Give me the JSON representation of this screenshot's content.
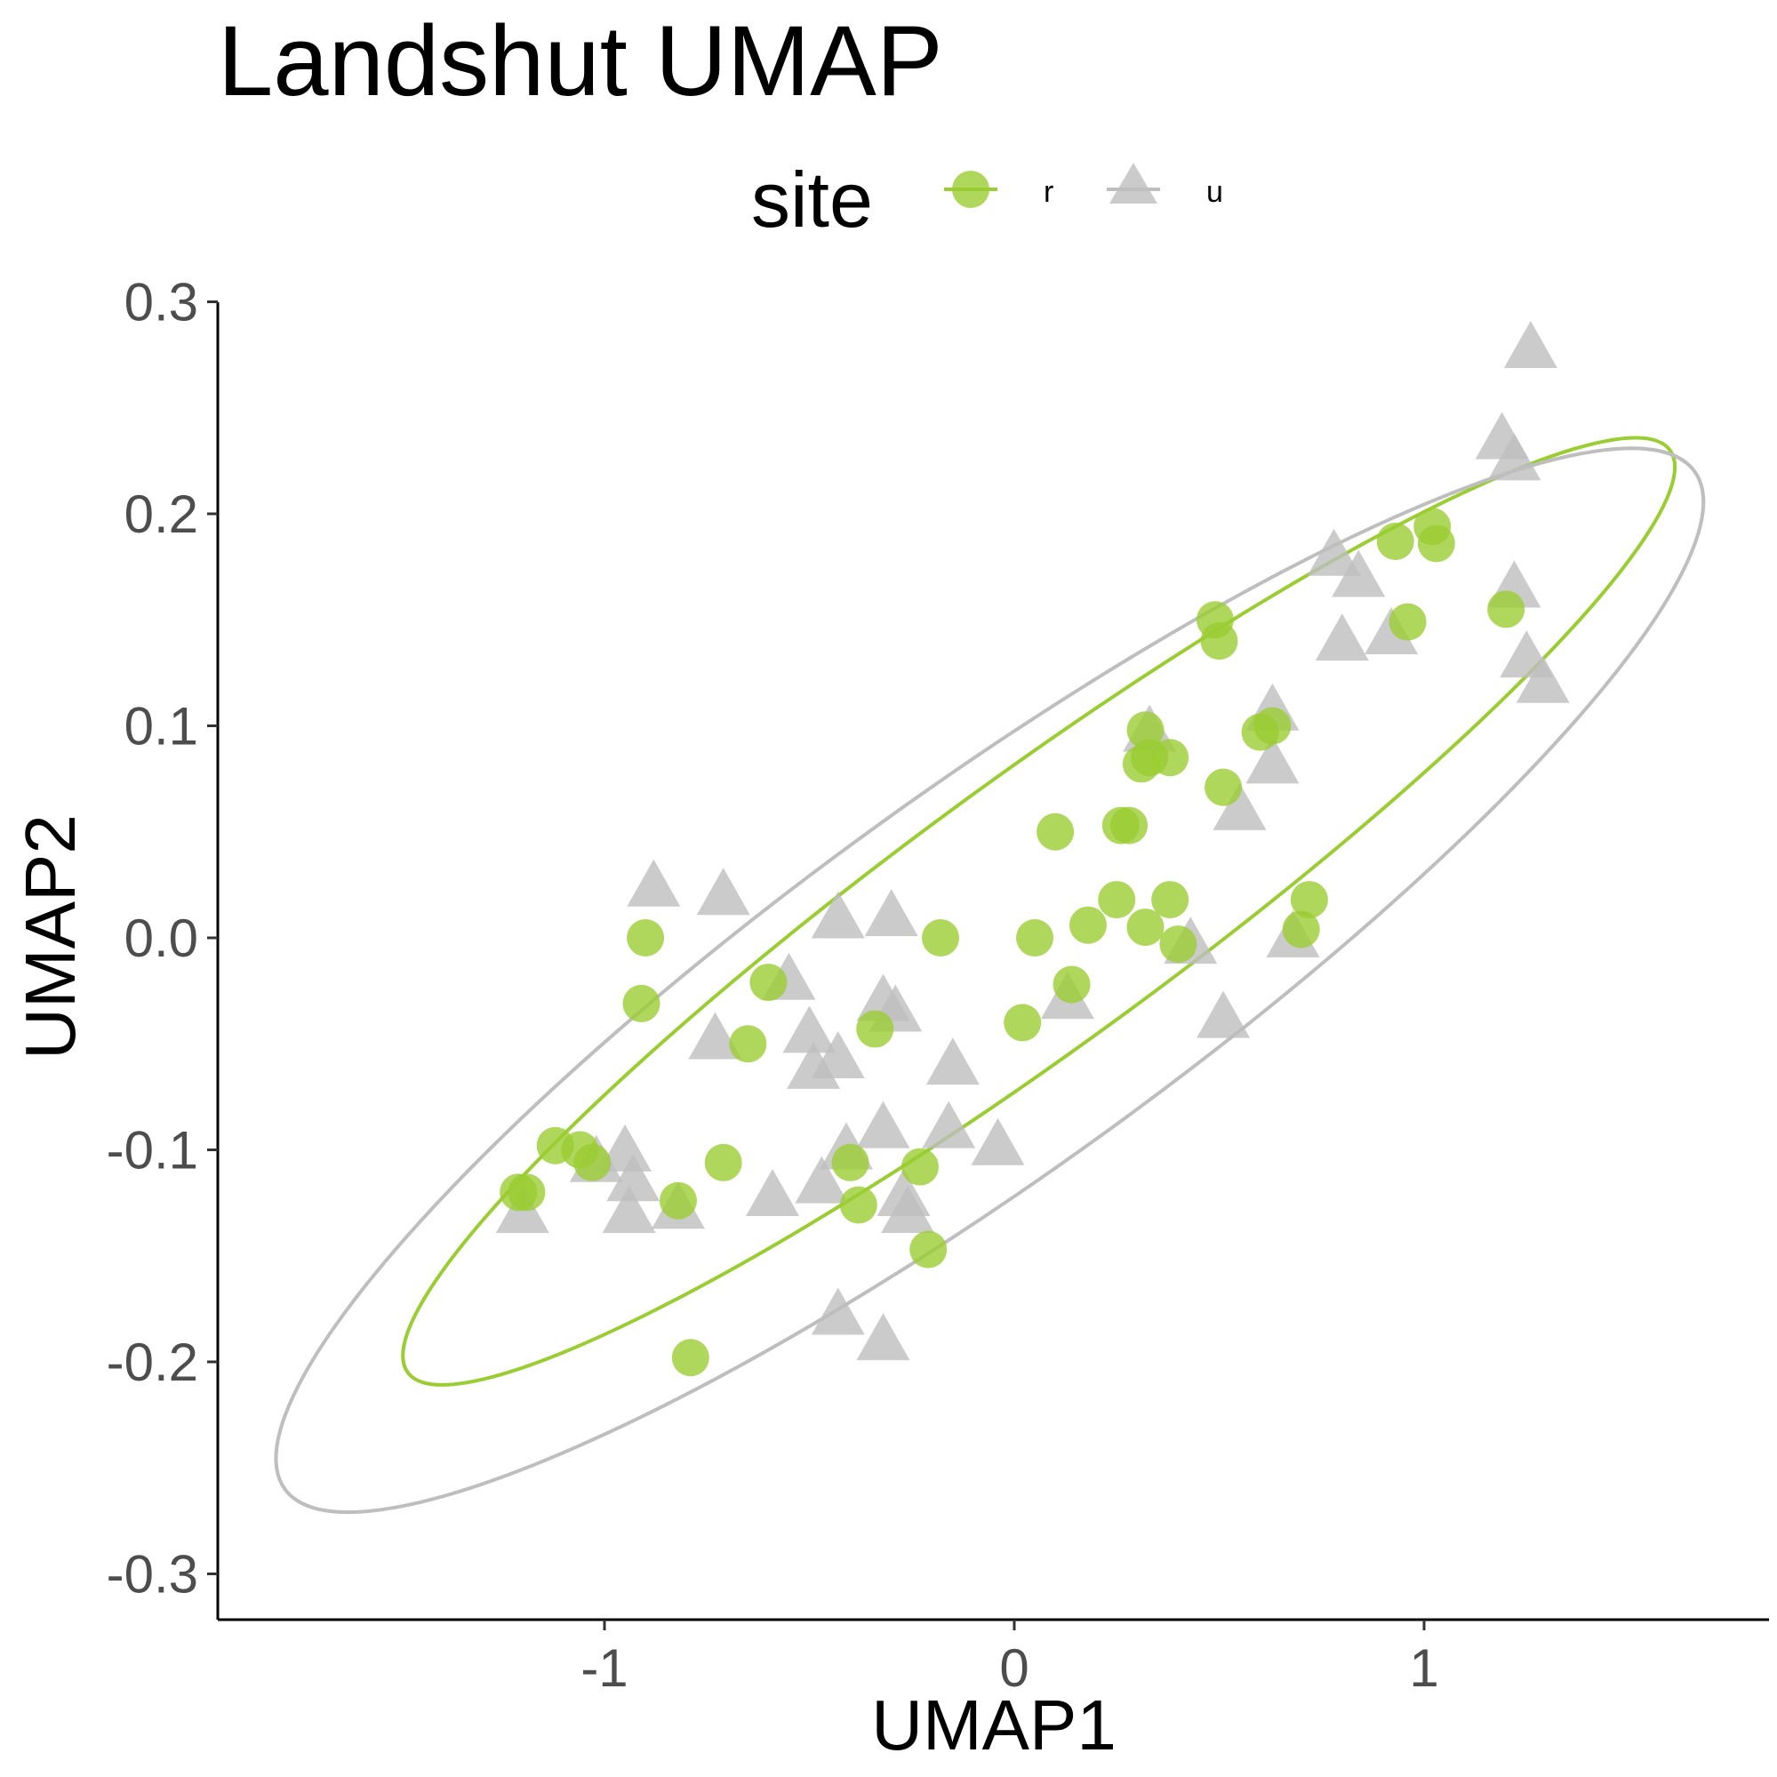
{
  "chart_data": {
    "type": "scatter",
    "title": "Landshut UMAP",
    "xlabel": "UMAP1",
    "ylabel": "UMAP2",
    "xlim": [
      -1.95,
      1.83
    ],
    "ylim": [
      -0.32,
      0.3
    ],
    "xticks": [
      -1,
      0,
      1
    ],
    "xtick_labels": [
      "-1",
      "0",
      "1"
    ],
    "yticks": [
      -0.3,
      -0.2,
      -0.1,
      0.0,
      0.1,
      0.2,
      0.3
    ],
    "ytick_labels": [
      "-0.3",
      "-0.2",
      "-0.1",
      "0.0",
      "0.1",
      "0.2",
      "0.3"
    ],
    "grid": false,
    "legend": {
      "title": "site",
      "position": "top"
    },
    "series": [
      {
        "name": "r",
        "marker": "circle",
        "color": "#9acd32",
        "ellipse": {
          "center": [
            0.08,
            0.014
          ],
          "vertices": [
            [
              -1.48,
              -0.205
            ],
            [
              1.6,
              0.23
            ]
          ],
          "co_vertex_offset": 0.53,
          "co_vertex_height": 0.105
        },
        "points": [
          [
            -1.19,
            -0.12
          ],
          [
            -1.21,
            -0.12
          ],
          [
            -1.12,
            -0.098
          ],
          [
            -1.06,
            -0.1
          ],
          [
            -1.03,
            -0.106
          ],
          [
            -0.9,
            0.0
          ],
          [
            -0.91,
            -0.031
          ],
          [
            -0.82,
            -0.124
          ],
          [
            -0.79,
            -0.198
          ],
          [
            -0.71,
            -0.106
          ],
          [
            -0.65,
            -0.05
          ],
          [
            -0.6,
            -0.021
          ],
          [
            -0.4,
            -0.106
          ],
          [
            -0.38,
            -0.126
          ],
          [
            -0.34,
            -0.043
          ],
          [
            -0.23,
            -0.108
          ],
          [
            -0.21,
            -0.147
          ],
          [
            -0.18,
            0.0
          ],
          [
            0.02,
            -0.04
          ],
          [
            0.05,
            0.0
          ],
          [
            0.1,
            0.05
          ],
          [
            0.14,
            -0.022
          ],
          [
            0.18,
            0.006
          ],
          [
            0.25,
            0.018
          ],
          [
            0.26,
            0.053
          ],
          [
            0.28,
            0.053
          ],
          [
            0.31,
            0.082
          ],
          [
            0.32,
            0.098
          ],
          [
            0.32,
            0.005
          ],
          [
            0.33,
            0.085
          ],
          [
            0.38,
            0.085
          ],
          [
            0.38,
            0.018
          ],
          [
            0.4,
            -0.003
          ],
          [
            0.49,
            0.15
          ],
          [
            0.5,
            0.14
          ],
          [
            0.51,
            0.071
          ],
          [
            0.6,
            0.097
          ],
          [
            0.63,
            0.1
          ],
          [
            0.7,
            0.004
          ],
          [
            0.72,
            0.018
          ],
          [
            0.93,
            0.187
          ],
          [
            0.96,
            0.149
          ],
          [
            1.02,
            0.194
          ],
          [
            1.03,
            0.186
          ],
          [
            1.2,
            0.155
          ]
        ]
      },
      {
        "name": "u",
        "marker": "triangle",
        "color": "#bebebe",
        "ellipse": {
          "center": [
            -0.09,
            -0.021
          ],
          "vertices": [
            [
              -1.78,
              -0.26
            ],
            [
              1.66,
              0.22
            ]
          ],
          "co_vertex_offset": 0.62,
          "co_vertex_height": 0.115
        },
        "points": [
          [
            -1.2,
            -0.13
          ],
          [
            -1.02,
            -0.106
          ],
          [
            -0.95,
            -0.101
          ],
          [
            -0.93,
            -0.115
          ],
          [
            -0.94,
            -0.13
          ],
          [
            -0.88,
            0.024
          ],
          [
            -0.82,
            -0.128
          ],
          [
            -0.73,
            -0.048
          ],
          [
            -0.71,
            0.02
          ],
          [
            -0.59,
            -0.122
          ],
          [
            -0.55,
            -0.02
          ],
          [
            -0.5,
            -0.045
          ],
          [
            -0.49,
            -0.062
          ],
          [
            -0.47,
            -0.116
          ],
          [
            -0.43,
            -0.057
          ],
          [
            -0.43,
            0.009
          ],
          [
            -0.43,
            -0.178
          ],
          [
            -0.41,
            -0.1
          ],
          [
            -0.32,
            -0.03
          ],
          [
            -0.32,
            -0.09
          ],
          [
            -0.32,
            -0.19
          ],
          [
            -0.3,
            0.01
          ],
          [
            -0.29,
            -0.035
          ],
          [
            -0.27,
            -0.122
          ],
          [
            -0.26,
            -0.13
          ],
          [
            -0.15,
            -0.06
          ],
          [
            -0.16,
            -0.09
          ],
          [
            -0.04,
            -0.098
          ],
          [
            0.13,
            -0.029
          ],
          [
            0.33,
            0.097
          ],
          [
            0.43,
            -0.003
          ],
          [
            0.51,
            -0.038
          ],
          [
            0.55,
            0.06
          ],
          [
            0.63,
            0.107
          ],
          [
            0.63,
            0.082
          ],
          [
            0.68,
            0.0
          ],
          [
            0.78,
            0.18
          ],
          [
            0.8,
            0.14
          ],
          [
            0.84,
            0.17
          ],
          [
            0.92,
            0.143
          ],
          [
            1.19,
            0.235
          ],
          [
            1.22,
            0.225
          ],
          [
            1.22,
            0.165
          ],
          [
            1.25,
            0.132
          ],
          [
            1.26,
            0.278
          ],
          [
            1.29,
            0.12
          ]
        ]
      }
    ]
  }
}
